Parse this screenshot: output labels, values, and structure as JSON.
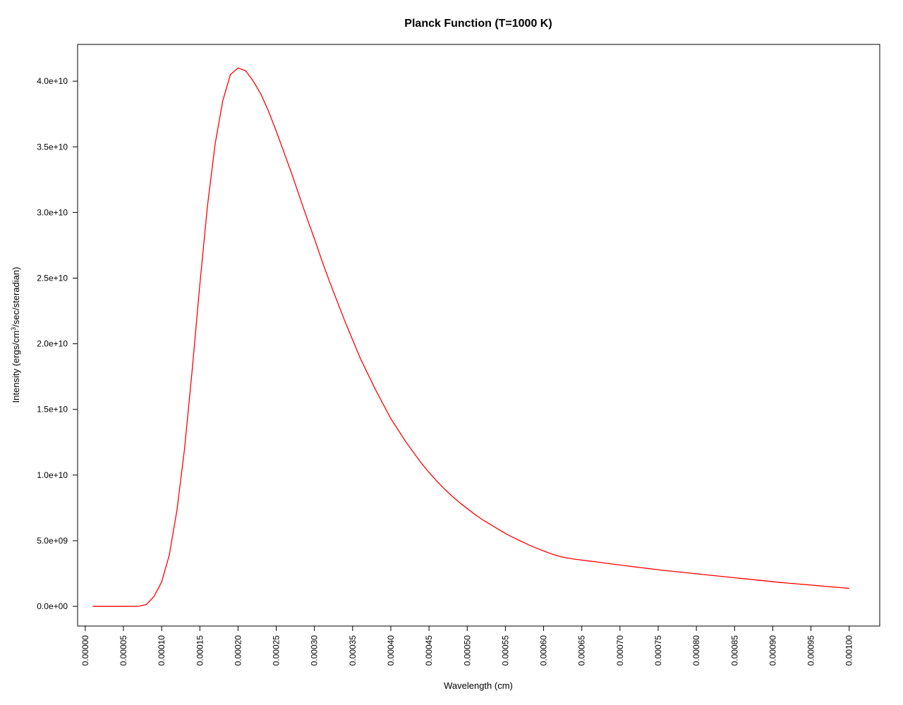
{
  "chart_data": {
    "type": "line",
    "title": "Planck Function (T=1000 K)",
    "xlabel": "Wavelength (cm)",
    "ylabel": {
      "before": "Intensity (ergs/cm",
      "superscript": "3",
      "after": "/sec/steradian)"
    },
    "xlim": [
      -1e-05,
      0.00104
    ],
    "ylim": [
      -1500000000.0,
      42800000000.0
    ],
    "x_ticks": [
      "0.00000",
      "0.00005",
      "0.00010",
      "0.00015",
      "0.00020",
      "0.00025",
      "0.00030",
      "0.00035",
      "0.00040",
      "0.00045",
      "0.00050",
      "0.00055",
      "0.00060",
      "0.00065",
      "0.00070",
      "0.00075",
      "0.00080",
      "0.00085",
      "0.00090",
      "0.00095",
      "0.00100"
    ],
    "y_ticks": [
      "0.0e+00",
      "5.0e+09",
      "1.0e+10",
      "1.5e+10",
      "2.0e+10",
      "2.5e+10",
      "3.0e+10",
      "3.5e+10",
      "4.0e+10"
    ],
    "x_tick_values": [
      0,
      5e-05,
      0.0001,
      0.00015,
      0.0002,
      0.00025,
      0.0003,
      0.00035,
      0.0004,
      0.00045,
      0.0005,
      0.00055,
      0.0006,
      0.00065,
      0.0007,
      0.00075,
      0.0008,
      0.00085,
      0.0009,
      0.00095,
      0.001
    ],
    "y_tick_values": [
      0,
      5000000000.0,
      10000000000.0,
      15000000000.0,
      20000000000.0,
      25000000000.0,
      30000000000.0,
      35000000000.0,
      40000000000.0
    ],
    "grid": false,
    "series": [
      {
        "color": "#ff0000",
        "x": [
          1e-05,
          2e-05,
          3e-05,
          4e-05,
          5e-05,
          6e-05,
          7e-05,
          8e-05,
          9e-05,
          0.0001,
          0.00011,
          0.00012,
          0.00013,
          0.00014,
          0.00015,
          0.00016,
          0.00017,
          0.00018,
          0.00019,
          0.0002,
          0.00021,
          0.00022,
          0.00023,
          0.00024,
          0.00025,
          0.00026,
          0.00027,
          0.00028,
          0.00029,
          0.0003,
          0.00031,
          0.00032,
          0.00033,
          0.00034,
          0.00035,
          0.00036,
          0.00037,
          0.00038,
          0.00039,
          0.0004,
          0.00041,
          0.00042,
          0.00043,
          0.00044,
          0.00045,
          0.00046,
          0.00047,
          0.00048,
          0.00049,
          0.0005,
          0.00051,
          0.00052,
          0.00053,
          0.00054,
          0.00055,
          0.00056,
          0.00057,
          0.00058,
          0.00059,
          0.0006,
          0.00061,
          0.00062,
          0.00063,
          0.00064,
          0.00065,
          0.00066,
          0.00067,
          0.00068,
          0.00069,
          0.0007,
          0.00071,
          0.00072,
          0.00073,
          0.00074,
          0.00075,
          0.00076,
          0.00077,
          0.00078,
          0.00079,
          0.0008,
          0.00081,
          0.00082,
          0.00083,
          0.00084,
          0.00085,
          0.00086,
          0.00087,
          0.00088,
          0.00089,
          0.0009,
          0.00091,
          0.00092,
          0.00093,
          0.00094,
          0.00095,
          0.00096,
          0.00097,
          0.00098,
          0.00099,
          0.001
        ],
        "y": [
          0,
          0,
          0,
          0,
          0,
          0,
          8000000,
          140000000,
          750000000,
          1860000000.0,
          3900000000.0,
          7300000000.0,
          12000000000.0,
          18000000000.0,
          24500000000.0,
          30500000000.0,
          35200000000.0,
          38500000000.0,
          40500000000.0,
          41000000000.0,
          40800000000.0,
          40000000000.0,
          39000000000.0,
          37700000000.0,
          36200000000.0,
          34600000000.0,
          33000000000.0,
          31300000000.0,
          29600000000.0,
          28000000000.0,
          26300000000.0,
          24700000000.0,
          23200000000.0,
          21700000000.0,
          20300000000.0,
          18900000000.0,
          17700000000.0,
          16500000000.0,
          15400000000.0,
          14300000000.0,
          13400000000.0,
          12500000000.0,
          11700000000.0,
          10900000000.0,
          10200000000.0,
          9550000000.0,
          8950000000.0,
          8400000000.0,
          7900000000.0,
          7450000000.0,
          7000000000.0,
          6600000000.0,
          6250000000.0,
          5900000000.0,
          5550000000.0,
          5250000000.0,
          4970000000.0,
          4700000000.0,
          4450000000.0,
          4220000000.0,
          4000000000.0,
          3820000000.0,
          3690000000.0,
          3600000000.0,
          3520000000.0,
          3450000000.0,
          3380000000.0,
          3300000000.0,
          3220000000.0,
          3150000000.0,
          3080000000.0,
          3000000000.0,
          2930000000.0,
          2860000000.0,
          2790000000.0,
          2720000000.0,
          2660000000.0,
          2600000000.0,
          2540000000.0,
          2480000000.0,
          2420000000.0,
          2360000000.0,
          2300000000.0,
          2240000000.0,
          2180000000.0,
          2120000000.0,
          2060000000.0,
          2000000000.0,
          1940000000.0,
          1880000000.0,
          1820000000.0,
          1770000000.0,
          1720000000.0,
          1670000000.0,
          1620000000.0,
          1570000000.0,
          1520000000.0,
          1470000000.0,
          1420000000.0,
          1370000000.0
        ]
      }
    ]
  }
}
